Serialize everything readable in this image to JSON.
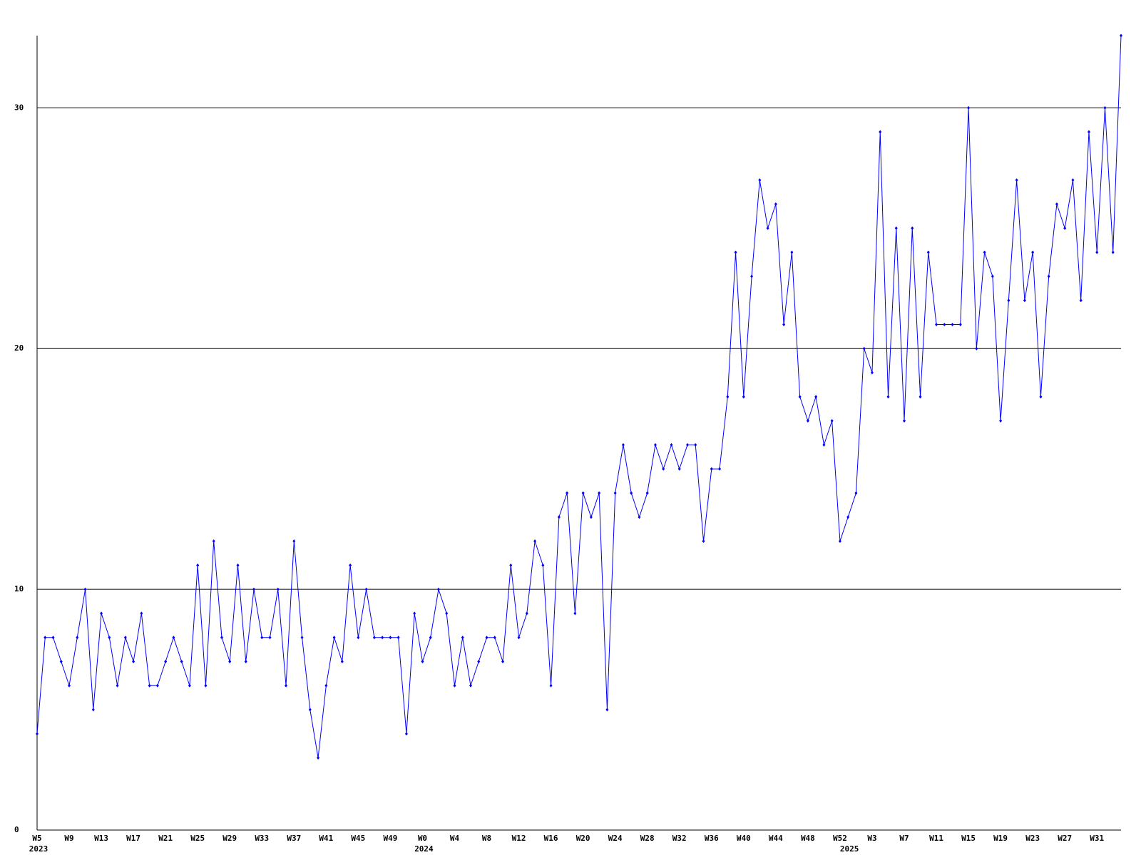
{
  "chart_data": {
    "type": "line",
    "categories": [
      "W5",
      null,
      null,
      null,
      "W9",
      null,
      null,
      null,
      "W13",
      null,
      null,
      null,
      "W17",
      null,
      null,
      null,
      "W21",
      null,
      null,
      null,
      "W25",
      null,
      null,
      null,
      "W29",
      null,
      null,
      null,
      "W33",
      null,
      null,
      null,
      "W37",
      null,
      null,
      null,
      "W41",
      null,
      null,
      null,
      "W45",
      null,
      null,
      null,
      "W49",
      null,
      null,
      null,
      "W0",
      null,
      null,
      null,
      "W4",
      null,
      null,
      null,
      "W8",
      null,
      null,
      null,
      "W12",
      null,
      null,
      null,
      "W16",
      null,
      null,
      null,
      "W20",
      null,
      null,
      null,
      "W24",
      null,
      null,
      null,
      "W28",
      null,
      null,
      null,
      "W32",
      null,
      null,
      null,
      "W36",
      null,
      null,
      null,
      "W40",
      null,
      null,
      null,
      "W44",
      null,
      null,
      null,
      "W48",
      null,
      null,
      null,
      "W52",
      null,
      null,
      null,
      "W3",
      null,
      null,
      null,
      "W7",
      null,
      null,
      null,
      "W11",
      null,
      null,
      null,
      "W15",
      null,
      null,
      null,
      "W19",
      null,
      null,
      null,
      "W23",
      null,
      null,
      null,
      "W27",
      null,
      null,
      null,
      "W31",
      null,
      null,
      null
    ],
    "years": [
      {
        "category": 0,
        "label": "2023"
      },
      {
        "category": 48,
        "label": "2024"
      },
      {
        "category": 101,
        "label": "2025"
      }
    ],
    "series": [
      {
        "color": "#0000ff",
        "values": [
          4,
          8,
          8,
          7,
          6,
          8,
          10,
          5,
          9,
          8,
          6,
          8,
          7,
          9,
          6,
          6,
          7,
          8,
          7,
          6,
          11,
          6,
          12,
          8,
          7,
          11,
          7,
          10,
          8,
          8,
          10,
          6,
          12,
          8,
          5,
          3,
          6,
          8,
          7,
          11,
          8,
          10,
          8,
          8,
          8,
          8,
          4,
          9,
          7,
          8,
          10,
          9,
          6,
          8,
          6,
          7,
          8,
          8,
          7,
          11,
          8,
          9,
          12,
          11,
          6,
          13,
          14,
          9,
          14,
          13,
          14,
          5,
          14,
          16,
          14,
          13,
          14,
          16,
          15,
          16,
          15,
          16,
          16,
          12,
          15,
          15,
          18,
          24,
          18,
          23,
          27,
          25,
          26,
          21,
          24,
          18,
          17,
          18,
          16,
          17,
          12,
          13,
          14,
          20,
          19,
          29,
          18,
          25,
          17,
          25,
          18,
          24,
          21,
          21,
          21,
          21,
          30,
          20,
          24,
          23,
          17,
          22,
          27,
          22,
          24,
          18,
          23,
          26,
          25,
          27,
          22,
          29,
          24,
          30,
          24,
          33
        ]
      }
    ],
    "ylim": [
      0,
      33
    ],
    "yticks": [
      0,
      10,
      20,
      30
    ],
    "grid": true
  }
}
